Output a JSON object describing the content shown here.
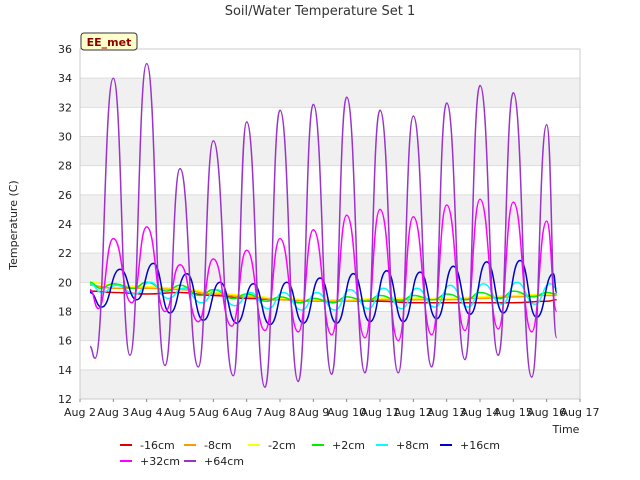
{
  "chart_data": {
    "type": "line",
    "title": "Soil/Water Temperature Set 1",
    "badge": "EE_met",
    "xlabel": "Time",
    "ylabel": "Temperature (C)",
    "xlim": [
      2,
      17
    ],
    "ylim": [
      12,
      36
    ],
    "x_ticks": [
      {
        "v": 2,
        "label": "Aug 2"
      },
      {
        "v": 3,
        "label": "Aug 3"
      },
      {
        "v": 4,
        "label": "Aug 4"
      },
      {
        "v": 5,
        "label": "Aug 5"
      },
      {
        "v": 6,
        "label": "Aug 6"
      },
      {
        "v": 7,
        "label": "Aug 7"
      },
      {
        "v": 8,
        "label": "Aug 8"
      },
      {
        "v": 9,
        "label": "Aug 9"
      },
      {
        "v": 10,
        "label": "Aug 10"
      },
      {
        "v": 11,
        "label": "Aug 11"
      },
      {
        "v": 12,
        "label": "Aug 12"
      },
      {
        "v": 13,
        "label": "Aug 13"
      },
      {
        "v": 14,
        "label": "Aug 14"
      },
      {
        "v": 15,
        "label": "Aug 15"
      },
      {
        "v": 16,
        "label": "Aug 16"
      },
      {
        "v": 17,
        "label": "Aug 17"
      }
    ],
    "y_ticks": [
      12,
      14,
      16,
      18,
      20,
      22,
      24,
      26,
      28,
      30,
      32,
      34,
      36
    ],
    "grid": true,
    "legend_position": "bottom",
    "x_note": "x values are days of August 2–16",
    "series": [
      {
        "name": "-16cm",
        "color": "#dd0000",
        "x": [
          2.3,
          3,
          4,
          5,
          6,
          7,
          8,
          9,
          10,
          11,
          12,
          13,
          14,
          15,
          16,
          16.3
        ],
        "y": [
          19.4,
          19.3,
          19.2,
          19.3,
          19.1,
          18.9,
          18.8,
          18.7,
          18.7,
          18.7,
          18.6,
          18.6,
          18.6,
          18.6,
          18.7,
          18.8
        ]
      },
      {
        "name": "+32cm",
        "color": "#ff00ff",
        "x": [
          2.3,
          2.55,
          3.0,
          3.55,
          4.0,
          4.55,
          5.0,
          5.55,
          6.0,
          6.55,
          7.0,
          7.55,
          8.0,
          8.55,
          9.0,
          9.55,
          10.0,
          10.55,
          11.0,
          11.55,
          12.0,
          12.55,
          13.0,
          13.55,
          14.0,
          14.55,
          15.0,
          15.55,
          16.0,
          16.3
        ],
        "y": [
          19.5,
          18.2,
          23.0,
          18.6,
          23.8,
          18.0,
          21.2,
          17.3,
          21.6,
          17.0,
          22.2,
          16.7,
          23.0,
          16.6,
          23.6,
          16.4,
          24.6,
          16.2,
          25.0,
          16.0,
          24.5,
          16.4,
          25.3,
          16.7,
          25.7,
          16.8,
          25.5,
          16.6,
          24.2,
          18.0
        ]
      },
      {
        "name": "+64cm",
        "color": "#9933cc",
        "x": [
          2.3,
          2.45,
          3.0,
          3.5,
          4.0,
          4.55,
          5.0,
          5.55,
          6.0,
          6.6,
          7.0,
          7.55,
          8.0,
          8.55,
          9.0,
          9.55,
          10.0,
          10.55,
          11.0,
          11.55,
          12.0,
          12.55,
          13.0,
          13.55,
          14.0,
          14.55,
          15.0,
          15.55,
          16.0,
          16.3
        ],
        "y": [
          15.6,
          14.8,
          34.0,
          15.0,
          35.0,
          14.3,
          27.8,
          14.2,
          29.7,
          13.6,
          31.0,
          12.8,
          31.8,
          13.2,
          32.2,
          13.7,
          32.7,
          13.8,
          31.8,
          13.8,
          31.4,
          14.2,
          32.3,
          14.7,
          33.5,
          15.0,
          33.0,
          13.5,
          30.8,
          16.2
        ]
      },
      {
        "name": "-8cm",
        "color": "#ff9900",
        "x": [
          2.3,
          3,
          4,
          5,
          6,
          7,
          8,
          9,
          10,
          11,
          12,
          13,
          14,
          15,
          16,
          16.3
        ],
        "y": [
          19.8,
          19.6,
          19.6,
          19.5,
          19.2,
          19.0,
          18.8,
          18.7,
          18.7,
          18.8,
          18.8,
          18.8,
          18.9,
          19.0,
          19.1,
          19.1
        ]
      },
      {
        "name": "-2cm",
        "color": "#ffff00",
        "x": [
          2.3,
          3,
          4,
          5,
          6,
          7,
          8,
          9,
          10,
          11,
          12,
          13,
          14,
          15,
          16,
          16.3
        ],
        "y": [
          20.0,
          19.8,
          19.7,
          19.6,
          19.3,
          19.1,
          18.9,
          18.8,
          18.8,
          18.9,
          18.9,
          18.9,
          19.0,
          19.1,
          19.2,
          19.2
        ]
      },
      {
        "name": "+2cm",
        "color": "#00ee00",
        "x": [
          2.3,
          2.6,
          3.0,
          3.6,
          4.0,
          4.6,
          5.0,
          5.6,
          6.0,
          6.6,
          7.0,
          7.6,
          8.0,
          8.6,
          9.0,
          9.6,
          10.0,
          10.6,
          11.0,
          11.6,
          12.0,
          12.6,
          13.0,
          13.6,
          14.0,
          14.6,
          15.0,
          15.6,
          16.0,
          16.3
        ],
        "y": [
          20.0,
          19.6,
          19.9,
          19.6,
          20.0,
          19.4,
          19.8,
          19.1,
          19.5,
          18.9,
          19.2,
          18.7,
          19.0,
          18.6,
          18.9,
          18.6,
          19.0,
          18.7,
          19.1,
          18.7,
          19.1,
          18.8,
          19.2,
          18.8,
          19.3,
          18.9,
          19.4,
          19.0,
          19.3,
          19.2
        ]
      },
      {
        "name": "+8cm",
        "color": "#00ffff",
        "x": [
          2.3,
          2.65,
          3.1,
          3.65,
          4.1,
          4.65,
          5.1,
          5.65,
          6.1,
          6.65,
          7.1,
          7.65,
          8.1,
          8.65,
          9.1,
          9.65,
          10.1,
          10.65,
          11.1,
          11.65,
          12.1,
          12.65,
          13.1,
          13.65,
          14.1,
          14.65,
          15.1,
          15.65,
          16.1,
          16.3
        ],
        "y": [
          19.9,
          19.3,
          19.8,
          19.2,
          20.0,
          18.9,
          19.6,
          18.6,
          19.5,
          18.4,
          19.3,
          18.2,
          19.3,
          18.1,
          19.3,
          18.1,
          19.5,
          18.2,
          19.6,
          18.2,
          19.6,
          18.3,
          19.8,
          18.3,
          19.9,
          18.5,
          20.0,
          18.5,
          19.9,
          19.6
        ]
      },
      {
        "name": "+16cm",
        "color": "#0000cc",
        "x": [
          2.3,
          2.65,
          3.2,
          3.7,
          4.2,
          4.7,
          5.2,
          5.7,
          6.2,
          6.7,
          7.2,
          7.7,
          8.2,
          8.7,
          9.2,
          9.7,
          10.2,
          10.7,
          11.2,
          11.7,
          12.2,
          12.7,
          13.2,
          13.7,
          14.2,
          14.7,
          15.2,
          15.7,
          16.2,
          16.3
        ],
        "y": [
          19.3,
          18.3,
          20.9,
          18.8,
          21.3,
          17.9,
          20.6,
          17.4,
          20.0,
          17.2,
          19.9,
          17.1,
          20.0,
          17.2,
          20.3,
          17.2,
          20.6,
          17.3,
          20.8,
          17.3,
          20.7,
          17.5,
          21.1,
          17.8,
          21.4,
          17.9,
          21.5,
          17.6,
          20.6,
          19.3
        ]
      }
    ],
    "legend": {
      "row1": [
        "-16cm",
        "-8cm",
        "-2cm",
        "+2cm",
        "+8cm",
        "+16cm"
      ],
      "row2": [
        "+32cm",
        "+64cm"
      ]
    }
  }
}
